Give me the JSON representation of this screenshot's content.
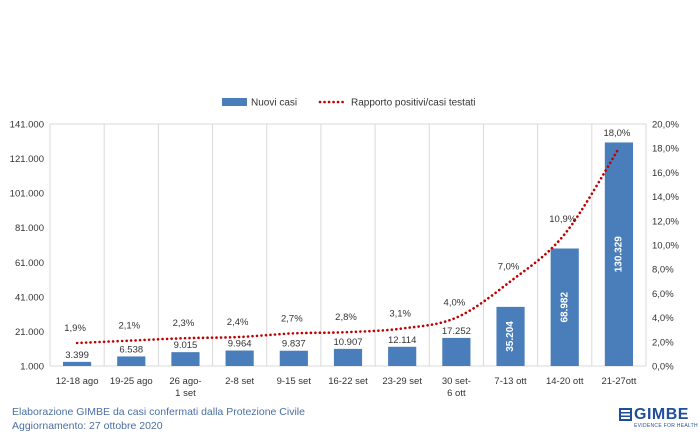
{
  "chart_data": {
    "type": "bar+line",
    "categories": [
      [
        "12-18 ago"
      ],
      [
        "19-25 ago"
      ],
      [
        "26 ago-",
        "1 set"
      ],
      [
        "2-8 set"
      ],
      [
        "9-15 set"
      ],
      [
        "16-22 set"
      ],
      [
        "23-29 set"
      ],
      [
        "30 set-",
        "6 ott"
      ],
      [
        "7-13 ott"
      ],
      [
        "14-20 ott"
      ],
      [
        "21-27ott"
      ]
    ],
    "series": [
      {
        "name": "Nuovi casi",
        "type": "bar",
        "axis": "left",
        "color": "#4a7ebb",
        "values": [
          3399,
          6538,
          9015,
          9964,
          9837,
          10907,
          12114,
          17252,
          35204,
          68982,
          130329
        ],
        "labels": [
          "3.399",
          "6.538",
          "9.015",
          "9.964",
          "9.837",
          "10.907",
          "12.114",
          "17.252",
          "35.204",
          "68.982",
          "130.329"
        ]
      },
      {
        "name": "Rapporto positivi/casi testati",
        "type": "line",
        "axis": "right",
        "color": "#c00000",
        "style": "dotted",
        "values": [
          1.9,
          2.1,
          2.3,
          2.4,
          2.7,
          2.8,
          3.1,
          4.0,
          7.0,
          10.9,
          18.0
        ],
        "labels": [
          "1,9%",
          "2,1%",
          "2,3%",
          "2,4%",
          "2,7%",
          "2,8%",
          "3,1%",
          "4,0%",
          "7,0%",
          "10,9%",
          "18,0%"
        ]
      }
    ],
    "y_left": {
      "range": [
        1000,
        141000
      ],
      "ticks": [
        1000,
        21000,
        41000,
        61000,
        81000,
        101000,
        121000,
        141000
      ],
      "tick_labels": [
        "1.000",
        "21.000",
        "41.000",
        "61.000",
        "81.000",
        "101.000",
        "121.000",
        "141.000"
      ]
    },
    "y_right": {
      "range": [
        0,
        20
      ],
      "ticks": [
        0,
        2,
        4,
        6,
        8,
        10,
        12,
        14,
        16,
        18,
        20
      ],
      "tick_labels": [
        "0,0%",
        "2,0%",
        "4,0%",
        "6,0%",
        "8,0%",
        "10,0%",
        "12,0%",
        "14,0%",
        "16,0%",
        "18,0%",
        "20,0%"
      ]
    },
    "grid": "vertical",
    "legend": "top-center"
  },
  "footer": {
    "source": "Elaborazione GIMBE da casi confermati dalla Protezione Civile",
    "updated": "Aggiornamento: 27 ottobre 2020"
  },
  "logo": {
    "name": "GIMBE",
    "tagline": "EVIDENCE FOR HEALTH"
  }
}
